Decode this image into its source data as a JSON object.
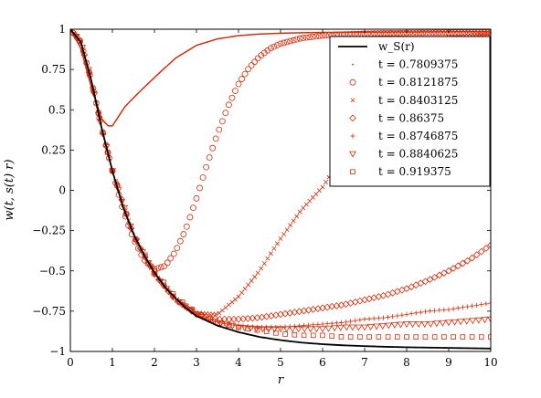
{
  "chart_data": {
    "type": "scatter",
    "title": "",
    "xlabel": "r",
    "ylabel": "w(t, s(t) r)",
    "xlim": [
      0,
      10
    ],
    "ylim": [
      -1,
      1
    ],
    "xticks": [
      "0",
      "1",
      "2",
      "3",
      "4",
      "5",
      "6",
      "7",
      "8",
      "9",
      "10"
    ],
    "yticks": [
      "1",
      "0.75",
      "0.5",
      "0.25",
      "0",
      "−0.25",
      "−0.5",
      "−0.75",
      "−1"
    ],
    "grid": false,
    "legend_position": "top-right",
    "colors": {
      "reference": "#000000",
      "series": "#d62d0a"
    },
    "reference": {
      "name": "w_S(r)",
      "marker": "line",
      "x": [
        0,
        0.25,
        0.5,
        0.75,
        1,
        1.25,
        1.5,
        1.75,
        2,
        2.25,
        2.5,
        2.75,
        3,
        3.5,
        4,
        4.5,
        5,
        5.5,
        6,
        6.5,
        7,
        7.5,
        8,
        8.5,
        9,
        9.5,
        10
      ],
      "y": [
        1,
        0.92,
        0.68,
        0.38,
        0.12,
        -0.1,
        -0.27,
        -0.4,
        -0.51,
        -0.6,
        -0.67,
        -0.73,
        -0.78,
        -0.84,
        -0.88,
        -0.91,
        -0.93,
        -0.945,
        -0.955,
        -0.962,
        -0.967,
        -0.971,
        -0.974,
        -0.976,
        -0.978,
        -0.98,
        -0.982
      ]
    },
    "series": [
      {
        "name": "t = 0.7809375",
        "marker": "line",
        "x": [
          0,
          0.25,
          0.5,
          0.75,
          0.9,
          1,
          1.1,
          1.3,
          1.6,
          2,
          2.5,
          3,
          3.5,
          4,
          4.5,
          5,
          5.5,
          6,
          7,
          8,
          9,
          10
        ],
        "y": [
          1,
          0.88,
          0.64,
          0.44,
          0.4,
          0.4,
          0.44,
          0.52,
          0.6,
          0.7,
          0.82,
          0.9,
          0.94,
          0.96,
          0.97,
          0.975,
          0.978,
          0.98,
          0.982,
          0.983,
          0.984,
          0.985
        ]
      },
      {
        "name": "t = 0.8121875",
        "marker": "circle",
        "x": [
          0,
          0.25,
          0.5,
          0.75,
          1,
          1.25,
          1.5,
          1.75,
          2,
          2.25,
          2.5,
          2.75,
          3,
          3.25,
          3.5,
          3.75,
          4,
          4.25,
          4.5,
          4.75,
          5,
          5.5,
          6,
          6.5,
          7,
          7.5,
          8,
          8.5,
          9,
          9.5,
          10
        ],
        "y": [
          1,
          0.92,
          0.68,
          0.38,
          0.12,
          -0.12,
          -0.3,
          -0.43,
          -0.49,
          -0.47,
          -0.38,
          -0.24,
          -0.05,
          0.16,
          0.35,
          0.52,
          0.66,
          0.76,
          0.83,
          0.88,
          0.91,
          0.945,
          0.96,
          0.968,
          0.972,
          0.975,
          0.977,
          0.978,
          0.979,
          0.98,
          0.98
        ]
      },
      {
        "name": "t = 0.8403125",
        "marker": "cross",
        "x": [
          0,
          0.25,
          0.5,
          0.75,
          1,
          1.5,
          2,
          2.5,
          3,
          3.5,
          4,
          4.5,
          5,
          5.5,
          6,
          6.25,
          6.5,
          7,
          7.5,
          8,
          8.5,
          9,
          9.5,
          10
        ],
        "y": [
          1,
          0.92,
          0.68,
          0.38,
          0.12,
          -0.28,
          -0.52,
          -0.67,
          -0.76,
          -0.77,
          -0.66,
          -0.5,
          -0.3,
          -0.12,
          0.02,
          0.12,
          0.3,
          0.6,
          0.78,
          0.87,
          0.92,
          0.95,
          0.96,
          0.97
        ]
      },
      {
        "name": "t = 0.86375",
        "marker": "diamond",
        "x": [
          0,
          0.25,
          0.5,
          0.75,
          1,
          1.5,
          2,
          2.5,
          3,
          3.5,
          4,
          4.5,
          5,
          5.5,
          6,
          6.5,
          7,
          7.5,
          8,
          8.5,
          9,
          9.5,
          10
        ],
        "y": [
          1,
          0.92,
          0.68,
          0.38,
          0.12,
          -0.28,
          -0.52,
          -0.68,
          -0.77,
          -0.8,
          -0.8,
          -0.79,
          -0.77,
          -0.75,
          -0.73,
          -0.71,
          -0.68,
          -0.65,
          -0.61,
          -0.56,
          -0.5,
          -0.43,
          -0.34
        ]
      },
      {
        "name": "t = 0.8746875",
        "marker": "plus",
        "x": [
          0,
          0.25,
          0.5,
          0.75,
          1,
          1.5,
          2,
          2.5,
          3,
          3.5,
          4,
          4.5,
          5,
          5.5,
          6,
          6.5,
          7,
          7.5,
          8,
          8.5,
          9,
          9.5,
          10
        ],
        "y": [
          1,
          0.92,
          0.68,
          0.38,
          0.12,
          -0.28,
          -0.52,
          -0.68,
          -0.77,
          -0.82,
          -0.84,
          -0.85,
          -0.85,
          -0.84,
          -0.83,
          -0.82,
          -0.8,
          -0.79,
          -0.77,
          -0.75,
          -0.74,
          -0.72,
          -0.7
        ]
      },
      {
        "name": "t = 0.8840625",
        "marker": "triangle-down",
        "x": [
          0,
          0.25,
          0.5,
          0.75,
          1,
          1.5,
          2,
          2.5,
          3,
          3.5,
          4,
          4.5,
          5,
          5.5,
          6,
          6.5,
          7,
          7.5,
          8,
          8.5,
          9,
          9.5,
          10
        ],
        "y": [
          1,
          0.92,
          0.68,
          0.38,
          0.12,
          -0.28,
          -0.52,
          -0.68,
          -0.77,
          -0.82,
          -0.85,
          -0.86,
          -0.86,
          -0.86,
          -0.86,
          -0.85,
          -0.85,
          -0.84,
          -0.83,
          -0.83,
          -0.82,
          -0.81,
          -0.8
        ]
      },
      {
        "name": "t = 0.919375",
        "marker": "square",
        "x": [
          0,
          0.25,
          0.5,
          0.75,
          1,
          1.5,
          2,
          2.5,
          3,
          3.5,
          4,
          4.5,
          5,
          5.5,
          6,
          6.5,
          7,
          7.5,
          8,
          8.5,
          9,
          9.5,
          10
        ],
        "y": [
          1,
          0.92,
          0.68,
          0.38,
          0.12,
          -0.28,
          -0.5,
          -0.66,
          -0.76,
          -0.82,
          -0.85,
          -0.87,
          -0.89,
          -0.9,
          -0.9,
          -0.91,
          -0.91,
          -0.91,
          -0.91,
          -0.91,
          -0.91,
          -0.91,
          -0.91
        ]
      }
    ]
  }
}
